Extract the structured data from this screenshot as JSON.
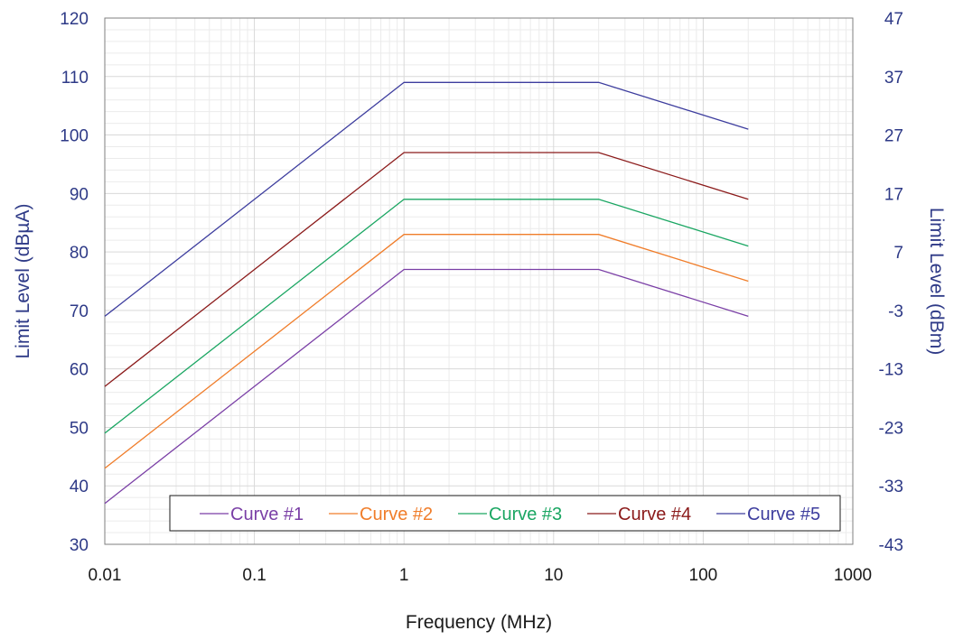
{
  "chart_data": {
    "type": "line",
    "xlabel": "Frequency (MHz)",
    "ylabel": "Limit Level (dBµA)",
    "y2label": "Limit Level (dBm)",
    "xscale": "log",
    "xlim": [
      0.01,
      1000
    ],
    "ylim": [
      30,
      120
    ],
    "y2lim": [
      -43,
      47
    ],
    "x_ticks": [
      "0.01",
      "0.1",
      "1",
      "10",
      "100",
      "1000"
    ],
    "y_ticks": [
      "30",
      "40",
      "50",
      "60",
      "70",
      "80",
      "90",
      "100",
      "110",
      "120"
    ],
    "y2_ticks": [
      "-43",
      "-33",
      "-23",
      "-13",
      "-3",
      "7",
      "17",
      "27",
      "37",
      "47"
    ],
    "grid": true,
    "legend_position": "bottom",
    "colors": {
      "axis_text": "#2e3a87",
      "grid": "#d9d9d9",
      "frame": "#7f7f7f"
    },
    "series": [
      {
        "name": "Curve #1",
        "color": "#7a3fa6",
        "x": [
          0.01,
          1,
          20,
          200
        ],
        "y": [
          37,
          77,
          77,
          69
        ]
      },
      {
        "name": "Curve #2",
        "color": "#f07d2a",
        "x": [
          0.01,
          1,
          20,
          200
        ],
        "y": [
          43,
          83,
          83,
          75
        ]
      },
      {
        "name": "Curve #3",
        "color": "#1aa662",
        "x": [
          0.01,
          1,
          20,
          200
        ],
        "y": [
          49,
          89,
          89,
          81
        ]
      },
      {
        "name": "Curve #4",
        "color": "#8b1a1a",
        "x": [
          0.01,
          1,
          20,
          200
        ],
        "y": [
          57,
          97,
          97,
          89
        ]
      },
      {
        "name": "Curve #5",
        "color": "#3d3d9e",
        "x": [
          0.01,
          1,
          20,
          200
        ],
        "y": [
          69,
          109,
          109,
          101
        ]
      }
    ]
  }
}
